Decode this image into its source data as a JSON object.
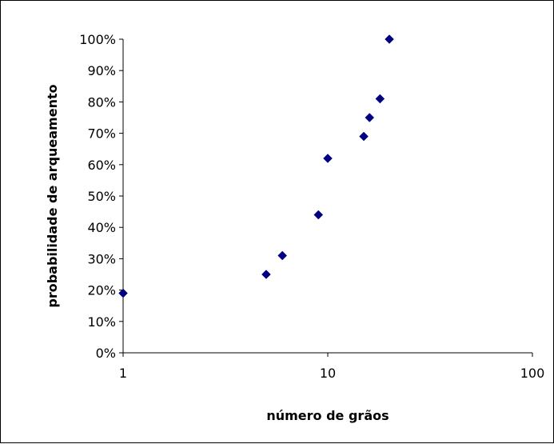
{
  "chart_data": {
    "type": "scatter",
    "title": "",
    "xlabel": "número de grãos",
    "ylabel": "probabilidade de arqueamento",
    "x_scale": "log",
    "xlim": [
      1,
      100
    ],
    "ylim": [
      0,
      1
    ],
    "x_ticks": [
      1,
      10,
      100
    ],
    "x_tick_labels": [
      "1",
      "10",
      "100"
    ],
    "y_ticks": [
      0,
      0.1,
      0.2,
      0.3,
      0.4,
      0.5,
      0.6,
      0.7,
      0.8,
      0.9,
      1.0
    ],
    "y_tick_labels": [
      "0%",
      "10%",
      "20%",
      "30%",
      "40%",
      "50%",
      "60%",
      "70%",
      "80%",
      "90%",
      "100%"
    ],
    "grid": false,
    "legend": "none",
    "marker": "diamond",
    "marker_color": "#000080",
    "points": [
      {
        "x": 1,
        "y": 0.19
      },
      {
        "x": 5,
        "y": 0.25
      },
      {
        "x": 6,
        "y": 0.31
      },
      {
        "x": 9,
        "y": 0.44
      },
      {
        "x": 10,
        "y": 0.62
      },
      {
        "x": 15,
        "y": 0.69
      },
      {
        "x": 16,
        "y": 0.75
      },
      {
        "x": 18,
        "y": 0.81
      },
      {
        "x": 20,
        "y": 1.0
      }
    ]
  }
}
